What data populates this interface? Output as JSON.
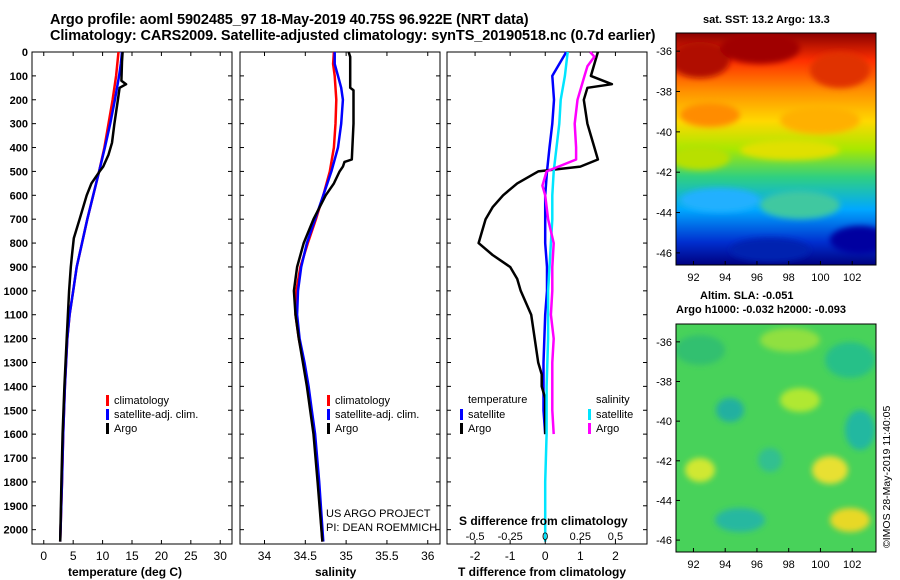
{
  "title": {
    "line1": "Argo profile: aoml 5902485_97 18-May-2019 40.75S 96.922E (NRT data)",
    "line2": "Climatology: CARS2009. Satellite-adjusted climatology: synTS_20190518.nc (0.7d earlier)"
  },
  "timestamp": "©IMOS 28-May-2019 11:40:05",
  "sst_title": "sat. SST: 13.2 Argo: 13.3",
  "sla_title": {
    "line1": "Altim. SLA: -0.051",
    "line2": "Argo h1000: -0.032 h2000: -0.093"
  },
  "credit": {
    "line1": "US ARGO PROJECT",
    "line2": "PI: DEAN ROEMMICH"
  },
  "colors": {
    "climatology": "#ff0000",
    "satellite": "#0000ff",
    "argo": "#000000",
    "sat_salinity": "#00e5ff",
    "argo_salinity": "#ff00ff"
  },
  "chart_data": [
    {
      "type": "line",
      "id": "temperature",
      "xlabel": "temperature (deg C)",
      "ylabel": "depth",
      "xlim": [
        -2,
        32
      ],
      "ylim": [
        2060,
        0
      ],
      "xticks": [
        "0",
        "5",
        "10",
        "15",
        "20",
        "25",
        "30"
      ],
      "xtick_values": [
        0,
        5,
        10,
        15,
        20,
        25,
        30
      ],
      "yticks": [
        "0",
        "100",
        "200",
        "300",
        "400",
        "500",
        "600",
        "700",
        "800",
        "900",
        "1000",
        "1100",
        "1200",
        "1300",
        "1400",
        "1500",
        "1600",
        "1700",
        "1800",
        "1900",
        "2000"
      ],
      "ytick_values": [
        0,
        100,
        200,
        300,
        400,
        500,
        600,
        700,
        800,
        900,
        1000,
        1100,
        1200,
        1300,
        1400,
        1500,
        1600,
        1700,
        1800,
        1900,
        2000
      ],
      "legend": [
        "climatology",
        "satellite-adj. clim.",
        "Argo"
      ],
      "series": [
        {
          "name": "climatology",
          "color": "#ff0000",
          "depth": [
            0,
            50,
            100,
            200,
            300,
            400,
            500,
            600,
            700,
            800,
            900,
            1000,
            1100,
            1200,
            1400,
            1600,
            1800,
            2050
          ],
          "values": [
            12.7,
            12.5,
            12.3,
            11.7,
            11.0,
            10.3,
            9.4,
            8.4,
            7.4,
            6.5,
            5.6,
            5.0,
            4.4,
            4.0,
            3.6,
            3.3,
            3.1,
            2.8
          ]
        },
        {
          "name": "satellite-adj. clim.",
          "color": "#0000ff",
          "depth": [
            0,
            50,
            100,
            200,
            300,
            400,
            500,
            600,
            700,
            800,
            900,
            1000,
            1100,
            1200,
            1400,
            1600,
            1800,
            2050
          ],
          "values": [
            13.3,
            13.1,
            12.8,
            12.1,
            11.3,
            10.4,
            9.4,
            8.4,
            7.4,
            6.5,
            5.6,
            5.0,
            4.4,
            4.0,
            3.6,
            3.3,
            3.1,
            2.8
          ]
        },
        {
          "name": "Argo",
          "color": "#000000",
          "depth": [
            0,
            40,
            120,
            135,
            150,
            200,
            300,
            380,
            430,
            480,
            500,
            550,
            600,
            700,
            780,
            850,
            900,
            1000,
            1100,
            1200,
            1400,
            1600,
            1800,
            2050
          ],
          "values": [
            13.4,
            13.3,
            13.2,
            14.0,
            12.9,
            12.6,
            12.0,
            11.6,
            11.0,
            10.1,
            9.5,
            8.1,
            7.3,
            6.1,
            5.1,
            4.8,
            4.6,
            4.3,
            4.1,
            3.9,
            3.5,
            3.2,
            3.0,
            2.8
          ]
        }
      ]
    },
    {
      "type": "line",
      "id": "salinity",
      "xlabel": "salinity",
      "ylabel": "depth",
      "xlim": [
        33.7,
        36.15
      ],
      "ylim": [
        2060,
        0
      ],
      "xticks": [
        "34",
        "34.5",
        "35",
        "35.5",
        "36"
      ],
      "xtick_values": [
        34,
        34.5,
        35,
        35.5,
        36
      ],
      "legend": [
        "climatology",
        "satellite-adj. clim.",
        "Argo"
      ],
      "series": [
        {
          "name": "climatology",
          "color": "#ff0000",
          "depth": [
            0,
            50,
            100,
            200,
            300,
            400,
            500,
            600,
            700,
            800,
            900,
            1000,
            1100,
            1200,
            1300,
            1400,
            1500,
            1600,
            1800,
            2050
          ],
          "values": [
            34.85,
            34.84,
            34.86,
            34.88,
            34.87,
            34.85,
            34.8,
            34.72,
            34.63,
            34.53,
            34.44,
            34.39,
            34.38,
            34.42,
            34.48,
            34.53,
            34.57,
            34.61,
            34.66,
            34.71
          ]
        },
        {
          "name": "satellite-adj. clim.",
          "color": "#0000ff",
          "depth": [
            0,
            50,
            100,
            150,
            200,
            300,
            400,
            500,
            600,
            700,
            800,
            900,
            1000,
            1100,
            1200,
            1300,
            1400,
            1500,
            1600,
            1800,
            2050
          ],
          "values": [
            34.86,
            34.86,
            34.9,
            34.94,
            34.96,
            34.94,
            34.9,
            34.82,
            34.72,
            34.62,
            34.52,
            34.45,
            34.41,
            34.4,
            34.43,
            34.49,
            34.54,
            34.58,
            34.62,
            34.67,
            34.72
          ]
        },
        {
          "name": "Argo",
          "color": "#000000",
          "depth": [
            0,
            20,
            150,
            160,
            300,
            450,
            460,
            480,
            500,
            550,
            600,
            700,
            800,
            900,
            1000,
            1100,
            1200,
            1300,
            1400,
            1500,
            1600,
            1800,
            2050
          ],
          "values": [
            35.03,
            35.05,
            35.05,
            35.09,
            35.09,
            35.07,
            34.98,
            34.96,
            34.92,
            34.85,
            34.75,
            34.6,
            34.48,
            34.4,
            34.36,
            34.38,
            34.42,
            34.47,
            34.52,
            34.56,
            34.6,
            34.65,
            34.71
          ]
        }
      ]
    },
    {
      "type": "line",
      "id": "difference",
      "xlabel": "T difference from climatology",
      "xlabel_top": "S difference from climatology",
      "ylabel": "depth",
      "xlim": [
        -2.8,
        2.9
      ],
      "ylim": [
        2060,
        0
      ],
      "xticks": [
        "-2",
        "-1",
        "0",
        "1",
        "2"
      ],
      "xtick_values": [
        -2,
        -1,
        0,
        1,
        2
      ],
      "xticks_top": [
        "-0.5",
        "-0.25",
        "0",
        "0.25",
        "0.5"
      ],
      "xtick_top_values": [
        -0.5,
        -0.25,
        0,
        0.25,
        0.5
      ],
      "legend_left": {
        "title": "temperature",
        "items": [
          "satellite",
          "Argo"
        ]
      },
      "legend_right": {
        "title": "salinity",
        "items": [
          "satellite",
          "Argo"
        ]
      },
      "series": [
        {
          "name": "temperature satellite",
          "color": "#0000ff",
          "depth": [
            0,
            100,
            200,
            300,
            400,
            500,
            600,
            700,
            800,
            900,
            1000,
            1100,
            1300,
            1500,
            1600
          ],
          "values": [
            0.6,
            0.2,
            0.25,
            0.2,
            0.12,
            0.05,
            0.0,
            0.0,
            0.0,
            0.05,
            0.05,
            0.0,
            -0.05,
            -0.05,
            0.0
          ]
        },
        {
          "name": "temperature Argo",
          "color": "#000000",
          "depth": [
            0,
            50,
            100,
            135,
            150,
            200,
            300,
            350,
            400,
            450,
            480,
            500,
            550,
            600,
            650,
            700,
            750,
            800,
            850,
            900,
            950,
            1000,
            1100,
            1200,
            1300,
            1350,
            1400,
            1450,
            1500,
            1600
          ],
          "values": [
            1.5,
            1.4,
            1.3,
            1.9,
            1.2,
            1.1,
            1.2,
            1.3,
            1.4,
            1.5,
            1.0,
            -0.2,
            -0.8,
            -1.2,
            -1.5,
            -1.7,
            -1.8,
            -1.9,
            -1.5,
            -1.0,
            -0.8,
            -0.7,
            -0.4,
            -0.3,
            -0.2,
            -0.1,
            -0.1,
            0.0,
            0.0,
            0.0
          ]
        },
        {
          "name": "salinity satellite",
          "color": "#00e5ff",
          "depth": [
            0,
            50,
            100,
            200,
            300,
            400,
            500,
            600,
            700,
            800,
            900,
            1000,
            1100,
            1200,
            1400,
            1600,
            1800,
            2050
          ],
          "values": [
            0.16,
            0.15,
            0.14,
            0.11,
            0.1,
            0.08,
            0.06,
            0.05,
            0.05,
            0.04,
            0.03,
            0.02,
            0.02,
            0.02,
            0.01,
            0.01,
            0.0,
            0.0
          ]
        },
        {
          "name": "salinity Argo",
          "color": "#ff00ff",
          "depth": [
            0,
            20,
            60,
            100,
            200,
            300,
            400,
            450,
            500,
            560,
            600,
            700,
            800,
            900,
            1000,
            1100,
            1200,
            1300,
            1400,
            1500,
            1600
          ],
          "values": [
            0.32,
            0.35,
            0.3,
            0.28,
            0.23,
            0.21,
            0.22,
            0.22,
            0.01,
            -0.02,
            0.0,
            0.02,
            0.06,
            0.05,
            0.05,
            0.04,
            0.06,
            0.05,
            0.05,
            0.05,
            0.06
          ]
        }
      ]
    },
    {
      "type": "heatmap",
      "id": "sst-map",
      "xticks": [
        "92",
        "94",
        "96",
        "98",
        "100",
        "102"
      ],
      "xtick_values": [
        92,
        94,
        96,
        98,
        100,
        102
      ],
      "yticks": [
        "-36",
        "-38",
        "-40",
        "-42",
        "-44",
        "-46"
      ],
      "ytick_values": [
        -36,
        -38,
        -40,
        -42,
        -44,
        -46
      ],
      "xlim": [
        90.9,
        103.5
      ],
      "ylim": [
        -46.6,
        -35.1
      ]
    },
    {
      "type": "heatmap",
      "id": "sla-map",
      "xticks": [
        "92",
        "94",
        "96",
        "98",
        "100",
        "102"
      ],
      "xtick_values": [
        92,
        94,
        96,
        98,
        100,
        102
      ],
      "yticks": [
        "-36",
        "-38",
        "-40",
        "-42",
        "-44",
        "-46"
      ],
      "ytick_values": [
        -36,
        -38,
        -40,
        -42,
        -44,
        -46
      ],
      "xlim": [
        90.9,
        103.5
      ],
      "ylim": [
        -46.6,
        -35.1
      ]
    }
  ]
}
